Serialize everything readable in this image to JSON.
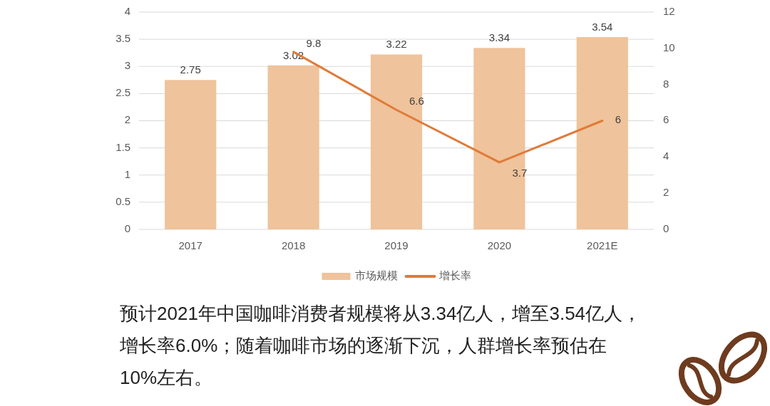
{
  "chart_data": {
    "type": "bar",
    "categories": [
      "2017",
      "2018",
      "2019",
      "2020",
      "2021E"
    ],
    "series": [
      {
        "name": "市场规模",
        "color": "#efc39b",
        "values": [
          2.75,
          3.02,
          3.22,
          3.34,
          3.54
        ]
      },
      {
        "name": "增长率",
        "type": "line",
        "axis": "y2",
        "color": "#e07b39",
        "line_style": "solid",
        "values": [
          null,
          9.8,
          6.6,
          3.7,
          6
        ]
      }
    ],
    "ylim": [
      0,
      4
    ],
    "yticks": [
      0,
      0.5,
      1,
      1.5,
      2,
      2.5,
      3,
      3.5,
      4
    ],
    "y2lim": [
      0,
      12
    ],
    "y2ticks": [
      0,
      2,
      4,
      6,
      8,
      10,
      12
    ],
    "grid": "y",
    "legend": "bottom",
    "data_labels": true,
    "annotations": [
      "预计2021年中国咖啡消费者规模将从3.34亿人，增至3.54亿人，增长率6.0%；随着咖啡市场的逐渐下沉，人群增长率预估在10%左右。"
    ]
  }
}
